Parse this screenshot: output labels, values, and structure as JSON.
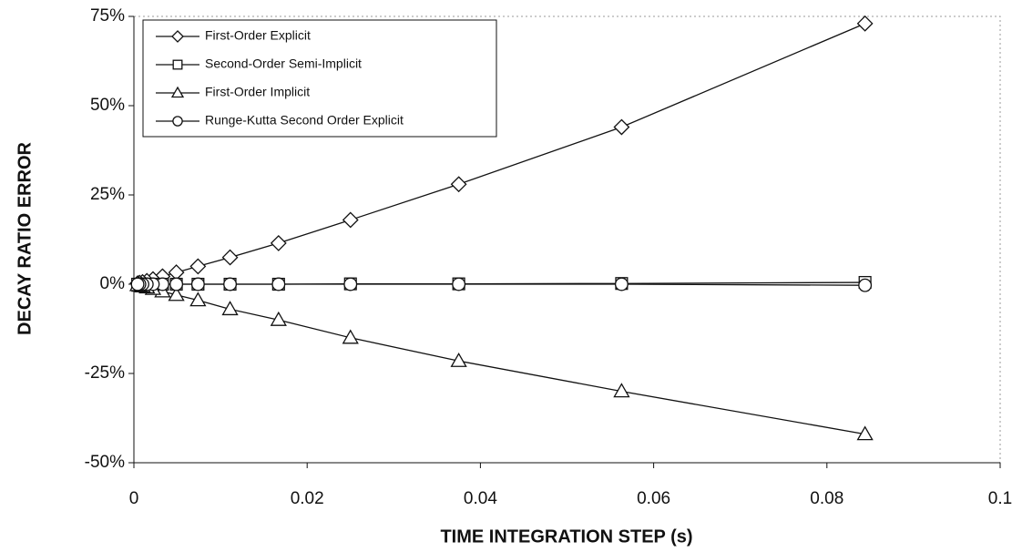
{
  "chart_data": {
    "type": "line",
    "xlabel": "TIME INTEGRATION STEP (s)",
    "ylabel": "DECAY RATIO ERROR",
    "x": [
      0.0844,
      0.0563,
      0.0375,
      0.025,
      0.0167,
      0.0111,
      0.0074,
      0.0049,
      0.0033,
      0.0022,
      0.0015,
      0.001,
      0.00065,
      0.00043
    ],
    "series": [
      {
        "name": "First-Order Explicit",
        "color": "#111111",
        "marker": "diamond",
        "values": [
          73,
          44,
          28,
          18,
          11.5,
          7.5,
          5,
          3.3,
          2.2,
          1.4,
          0.9,
          0.6,
          0.4,
          0.25
        ]
      },
      {
        "name": "Second-Order Semi-Implicit",
        "color": "#111111",
        "marker": "square",
        "values": [
          0.5,
          0.2,
          0.1,
          0.1,
          0,
          0,
          0,
          0,
          0,
          0,
          0,
          0,
          0,
          0
        ]
      },
      {
        "name": "First-Order Implicit",
        "color": "#111111",
        "marker": "triangle",
        "values": [
          -42,
          -30,
          -21.5,
          -15,
          -10,
          -7,
          -4.5,
          -3,
          -2,
          -1.3,
          -0.9,
          -0.6,
          -0.4,
          -0.25
        ]
      },
      {
        "name": "Runge-Kutta Second Order Explicit",
        "color": "#111111",
        "marker": "circle",
        "values": [
          -0.3,
          0,
          0,
          0,
          0,
          0,
          0,
          0,
          0,
          0,
          0,
          0,
          0,
          0
        ]
      }
    ],
    "xlim": [
      0,
      0.1
    ],
    "xticks": [
      0,
      0.02,
      0.04,
      0.06,
      0.08,
      0.1
    ],
    "ylim": [
      -50,
      75
    ],
    "yticks": [
      {
        "value": -50,
        "label": "-50%"
      },
      {
        "value": -25,
        "label": "-25%"
      },
      {
        "value": 0,
        "label": "0%"
      },
      {
        "value": 25,
        "label": "25%"
      },
      {
        "value": 50,
        "label": "50%"
      },
      {
        "value": 75,
        "label": "75%"
      }
    ],
    "legend": "upper left"
  }
}
